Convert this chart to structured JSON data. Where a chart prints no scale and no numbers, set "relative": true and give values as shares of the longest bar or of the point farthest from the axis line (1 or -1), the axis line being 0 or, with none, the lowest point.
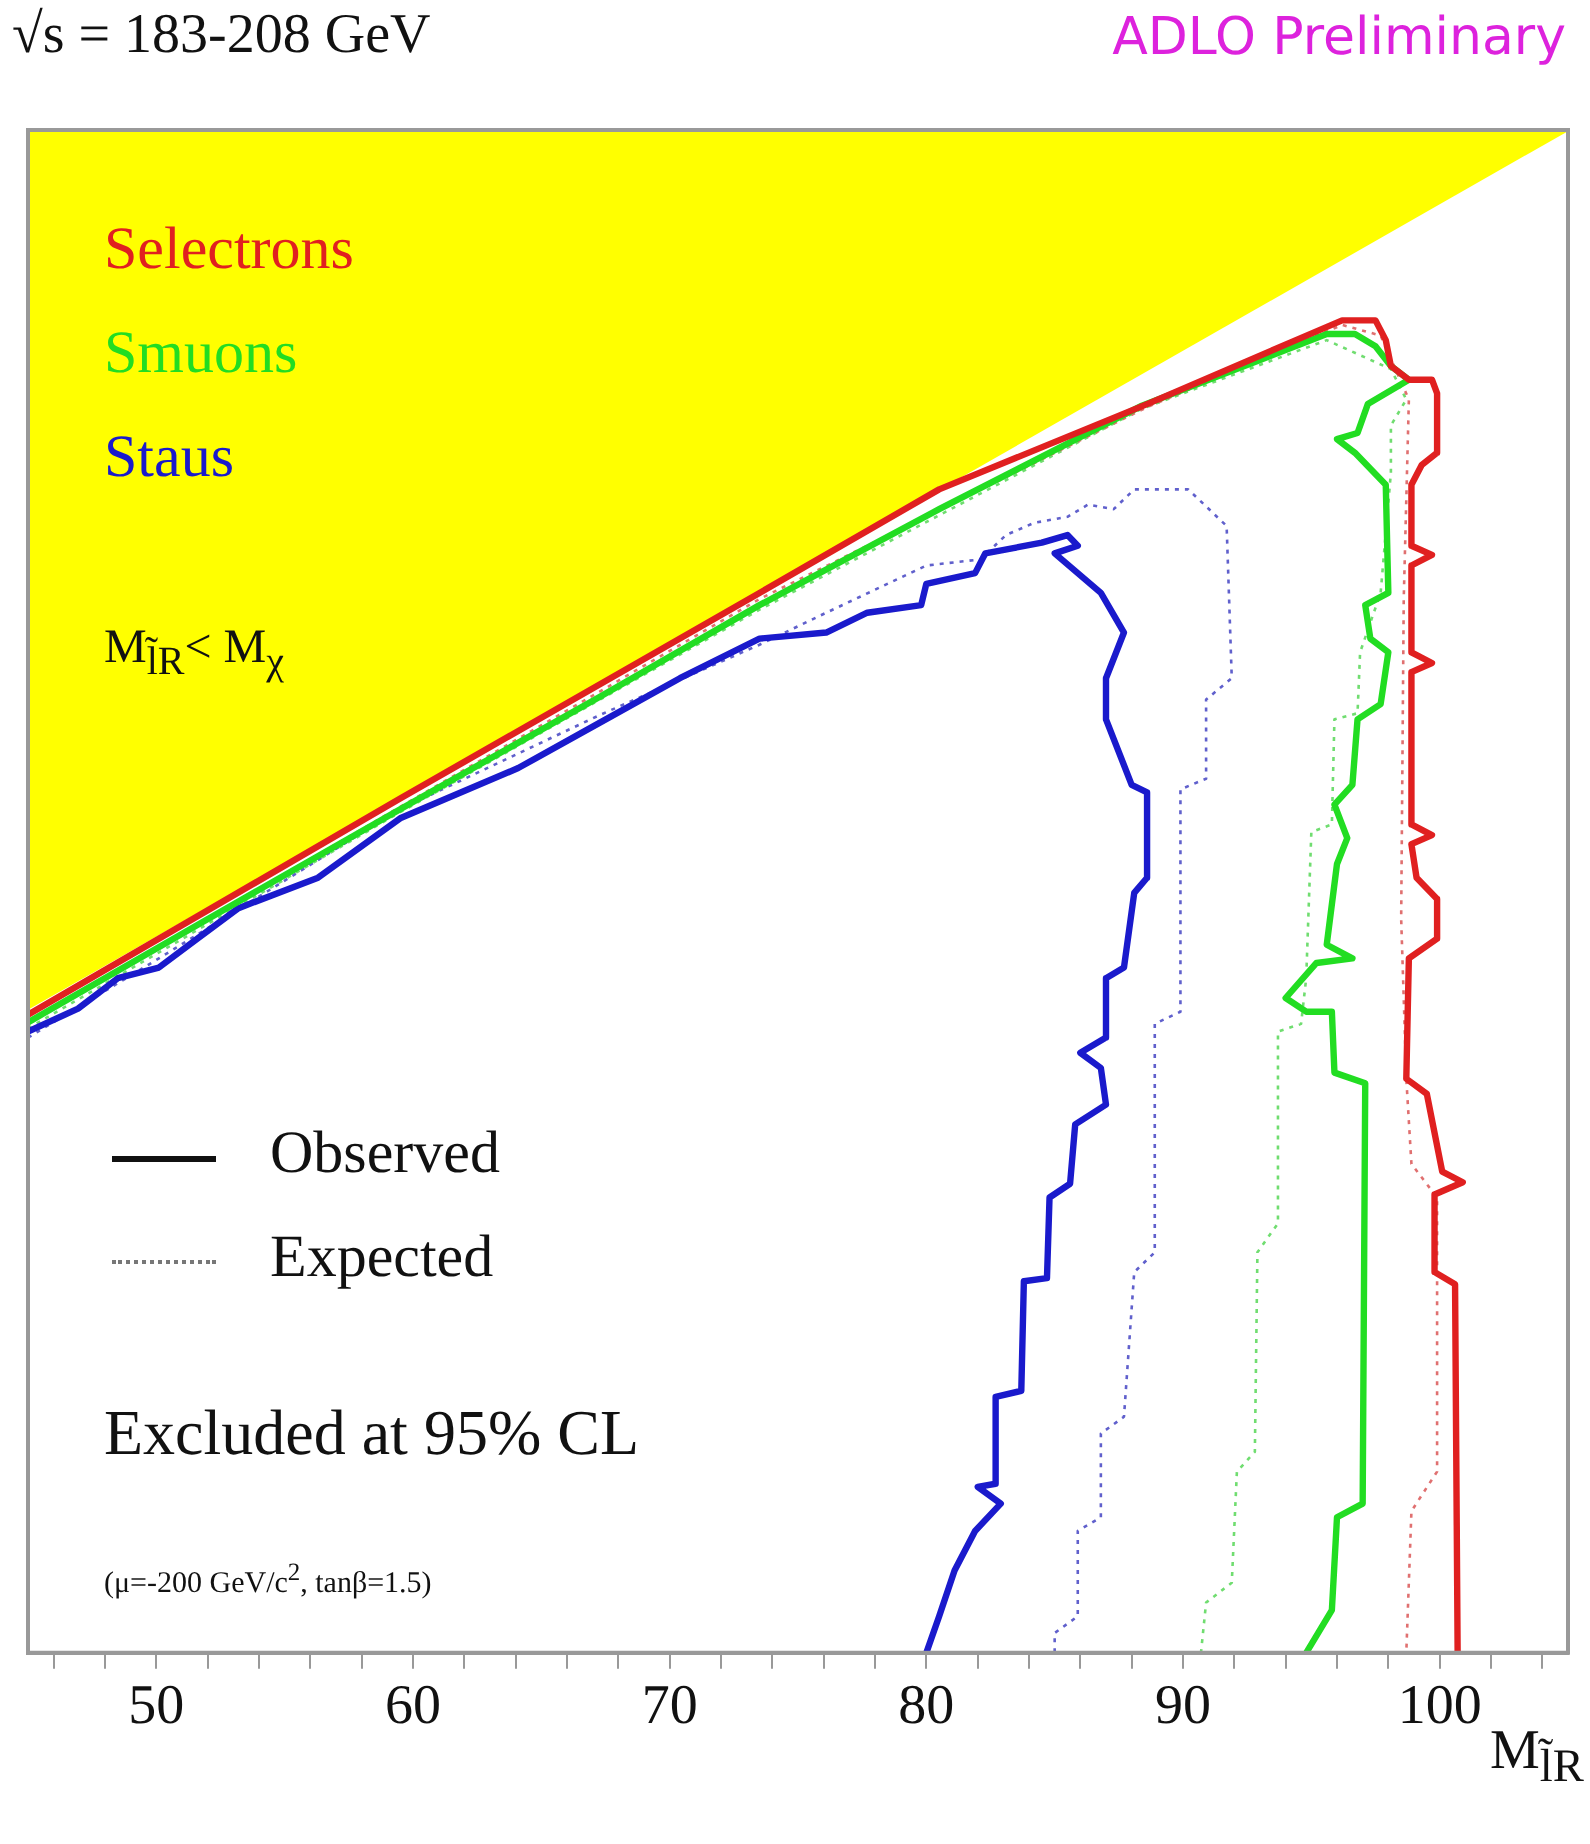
{
  "chart_data": {
    "type": "line",
    "title": "√s = 183-208 GeV",
    "subtitle": "ADLO Preliminary",
    "xlabel": "M$_{l̃R}$",
    "relative": true,
    "xlim": [
      45,
      105
    ],
    "xticks": [
      {
        "value": 46,
        "label": null
      },
      {
        "value": 48,
        "label": null
      },
      50,
      {
        "value": 52,
        "label": null
      },
      {
        "value": 54,
        "label": null
      },
      {
        "value": 56,
        "label": null
      },
      {
        "value": 58,
        "label": null
      },
      60,
      {
        "value": 62,
        "label": null
      },
      {
        "value": 64,
        "label": null
      },
      {
        "value": 66,
        "label": null
      },
      {
        "value": 68,
        "label": null
      },
      70,
      {
        "value": 72,
        "label": null
      },
      {
        "value": 74,
        "label": null
      },
      {
        "value": 76,
        "label": null
      },
      {
        "value": 78,
        "label": null
      },
      80,
      {
        "value": 82,
        "label": null
      },
      {
        "value": 84,
        "label": null
      },
      {
        "value": 86,
        "label": null
      },
      {
        "value": 88,
        "label": null
      },
      90,
      {
        "value": 92,
        "label": null
      },
      {
        "value": 94,
        "label": null
      },
      {
        "value": 96,
        "label": null
      },
      {
        "value": 98,
        "label": null
      },
      100,
      {
        "value": 102,
        "label": null
      },
      {
        "value": 104,
        "label": null
      }
    ],
    "grid": false,
    "legend": "top left",
    "marker": "none",
    "series": [
      {
        "type": "area",
        "color": "#ffff00",
        "x": [
          45,
          105
        ],
        "values": [
          0.423,
          1
        ]
      },
      {
        "name": "Selectrons",
        "color": "#e02020",
        "line_style": "solid",
        "x": [
          45.0,
          59.5,
          73.5,
          80.5,
          88.6,
          94.4,
          96.2,
          97.5,
          97.9,
          98.1,
          98.8,
          99.7,
          99.9,
          99.9,
          99.3,
          98.9,
          98.9,
          99.7,
          98.9,
          98.9,
          99.7,
          98.9,
          98.9,
          99.7,
          98.9,
          99.1,
          99.9,
          99.9,
          98.8,
          98.7,
          99.5,
          100.1,
          100.9,
          99.8,
          99.8,
          100.6,
          100.7
        ],
        "values": [
          0.419,
          0.561,
          0.696,
          0.764,
          0.82,
          0.862,
          0.875,
          0.875,
          0.862,
          0.845,
          0.836,
          0.836,
          0.827,
          0.788,
          0.78,
          0.767,
          0.727,
          0.721,
          0.714,
          0.657,
          0.65,
          0.644,
          0.544,
          0.537,
          0.531,
          0.509,
          0.495,
          0.469,
          0.456,
          0.377,
          0.367,
          0.316,
          0.309,
          0.301,
          0.25,
          0.242,
          0
        ]
      },
      {
        "name": "Smuons",
        "color": "#22dd22",
        "line_style": "solid",
        "x": [
          45.0,
          51.6,
          59.5,
          67.3,
          73.5,
          80.5,
          88.4,
          93.0,
          95.6,
          96.7,
          97.5,
          98.1,
          98.8,
          97.2,
          96.8,
          96.0,
          96.7,
          97.9,
          98.0,
          97.1,
          97.3,
          98.0,
          97.7,
          96.8,
          96.6,
          95.9,
          96.4,
          96.0,
          95.6,
          96.6,
          95.2,
          94.0,
          94.8,
          95.8,
          95.9,
          97.1,
          97.0,
          96.0,
          95.8,
          94.8
        ],
        "values": [
          0.414,
          0.478,
          0.554,
          0.628,
          0.688,
          0.751,
          0.819,
          0.849,
          0.866,
          0.866,
          0.858,
          0.845,
          0.836,
          0.82,
          0.801,
          0.797,
          0.788,
          0.767,
          0.696,
          0.688,
          0.666,
          0.657,
          0.623,
          0.613,
          0.57,
          0.557,
          0.535,
          0.518,
          0.465,
          0.456,
          0.453,
          0.43,
          0.421,
          0.421,
          0.381,
          0.374,
          0.098,
          0.089,
          0.028,
          0
        ]
      },
      {
        "name": "Staus",
        "color": "#1a1acc",
        "line_style": "solid",
        "x": [
          45.0,
          46.95,
          48.5,
          50.1,
          51.6,
          53.2,
          56.3,
          59.5,
          64.1,
          67.3,
          70.4,
          73.5,
          76.1,
          77.7,
          79.8,
          80.0,
          81.9,
          82.3,
          84.5,
          85.5,
          85.9,
          85.0,
          86.8,
          87.7,
          87.0,
          87.0,
          88.0,
          88.6,
          88.6,
          88.1,
          87.7,
          87.0,
          87.0,
          86.0,
          86.8,
          87.0,
          85.8,
          85.6,
          84.8,
          84.7,
          83.8,
          83.7,
          82.7,
          82.7,
          82.0,
          82.9,
          81.9,
          81.1,
          80.5,
          80.0
        ],
        "values": [
          0.408,
          0.423,
          0.443,
          0.45,
          0.469,
          0.489,
          0.509,
          0.548,
          0.581,
          0.611,
          0.64,
          0.666,
          0.67,
          0.683,
          0.688,
          0.702,
          0.709,
          0.722,
          0.729,
          0.734,
          0.727,
          0.722,
          0.696,
          0.67,
          0.64,
          0.613,
          0.57,
          0.565,
          0.509,
          0.499,
          0.45,
          0.443,
          0.404,
          0.394,
          0.384,
          0.36,
          0.347,
          0.308,
          0.299,
          0.246,
          0.244,
          0.172,
          0.168,
          0.111,
          0.109,
          0.098,
          0.08,
          0.054,
          0.024,
          0
        ]
      },
      {
        "color": "#e07070",
        "line_style": "dotted",
        "x": [
          45.0,
          73.5,
          88.6,
          96.2,
          97.7,
          98.8,
          98.6,
          98.5,
          98.7,
          98.9,
          99.9,
          99.9,
          98.9,
          98.7
        ],
        "values": [
          0.414,
          0.692,
          0.818,
          0.872,
          0.865,
          0.823,
          0.692,
          0.482,
          0.377,
          0.321,
          0.299,
          0.119,
          0.093,
          0
        ]
      },
      {
        "color": "#70dd70",
        "line_style": "dotted",
        "x": [
          45.0,
          59.5,
          73.5,
          88.4,
          95.6,
          98.1,
          98.7,
          98.1,
          98.1,
          97.7,
          96.9,
          96.8,
          95.9,
          95.8,
          95.0,
          94.8,
          94.6,
          93.7,
          93.7,
          92.9,
          92.8,
          92.1,
          91.9,
          90.9,
          90.7
        ],
        "values": [
          0.41,
          0.552,
          0.685,
          0.817,
          0.862,
          0.843,
          0.823,
          0.806,
          0.775,
          0.696,
          0.657,
          0.617,
          0.613,
          0.544,
          0.539,
          0.443,
          0.413,
          0.408,
          0.282,
          0.263,
          0.132,
          0.119,
          0.046,
          0.033,
          0
        ]
      },
      {
        "color": "#6060cc",
        "line_style": "dotted",
        "x": [
          45.0,
          50.1,
          59.5,
          67.3,
          73.5,
          76.1,
          80.0,
          82.1,
          83.1,
          84.2,
          85.5,
          86.3,
          87.3,
          88.1,
          90.2,
          91.7,
          91.9,
          90.9,
          90.9,
          89.9,
          89.9,
          88.9,
          88.9,
          88.1,
          87.7,
          86.8,
          86.8,
          85.9,
          85.9,
          85.0,
          85.0
        ],
        "values": [
          0.404,
          0.456,
          0.554,
          0.616,
          0.662,
          0.683,
          0.714,
          0.718,
          0.734,
          0.742,
          0.746,
          0.754,
          0.751,
          0.764,
          0.764,
          0.74,
          0.64,
          0.626,
          0.574,
          0.567,
          0.421,
          0.413,
          0.263,
          0.25,
          0.155,
          0.144,
          0.089,
          0.08,
          0.024,
          0.013,
          0
        ]
      }
    ],
    "annotations": [
      "M$_{l̃R}$< M$_{χ}$",
      "Observed",
      "Expected",
      "Excluded at 95% CL",
      "(μ=-200 GeV/c$^{2}$, tanβ=1.5)"
    ]
  }
}
